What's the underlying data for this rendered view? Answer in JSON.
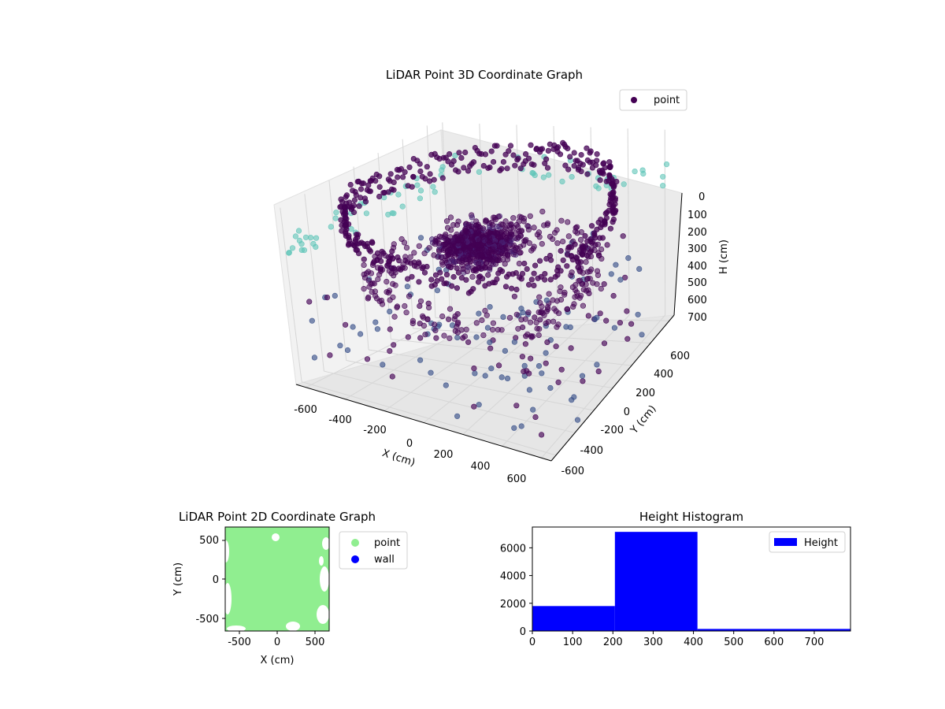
{
  "colors": {
    "point_dark": "#440154",
    "point_mid": "#3b528b",
    "point_teal": "#5ec4b8",
    "point_2d": "#90ee90",
    "wall": "#0000ff",
    "histogram": "#0000ff",
    "axes": "#000000"
  },
  "chart_data": [
    {
      "type": "scatter",
      "projection": "3d",
      "title": "LiDAR Point 3D Coordinate Graph",
      "xlabel": "X (cm)",
      "ylabel": "Y (cm)",
      "zlabel": "H (cm)",
      "xticks": [
        "-600",
        "-400",
        "-200",
        "0",
        "200",
        "400",
        "600"
      ],
      "yticks": [
        "-600",
        "-400",
        "-200",
        "0",
        "200",
        "400",
        "600"
      ],
      "zticks": [
        "0",
        "100",
        "200",
        "300",
        "400",
        "500",
        "600",
        "700"
      ],
      "xlim": [
        -650,
        650
      ],
      "ylim": [
        -650,
        650
      ],
      "zlim": [
        0,
        750
      ],
      "z_axis_inverted": true,
      "legend": {
        "position": "top-right",
        "entries": [
          "point"
        ]
      },
      "grid": true,
      "series": [
        {
          "name": "point",
          "description": "dense ring of points near the ceiling at radius ~600 cm and height ~0–200 cm, with a dense cluster around the center at height 250–400 cm and sparse outliers down to 700 cm"
        }
      ]
    },
    {
      "type": "scatter",
      "title": "LiDAR Point 2D Coordinate Graph",
      "xlabel": "X (cm)",
      "ylabel": "Y (cm)",
      "xticks": [
        "-500",
        "0",
        "500"
      ],
      "yticks": [
        "-500",
        "0",
        "500"
      ],
      "xlim": [
        -650,
        650
      ],
      "ylim": [
        -650,
        650
      ],
      "legend": {
        "position": "outside-right",
        "entries": [
          "point",
          "wall"
        ]
      },
      "series": [
        {
          "name": "point",
          "description": "points fill nearly the whole square area"
        },
        {
          "name": "wall",
          "values": []
        }
      ]
    },
    {
      "type": "bar",
      "subtype": "histogram",
      "title": "Height Histogram",
      "xticks": [
        "0",
        "100",
        "200",
        "300",
        "400",
        "500",
        "600",
        "700"
      ],
      "yticks": [
        "0",
        "2000",
        "4000",
        "6000"
      ],
      "xlim": [
        0,
        790
      ],
      "ylim": [
        0,
        7500
      ],
      "legend": {
        "position": "top-right",
        "entries": [
          "Height"
        ]
      },
      "bins": [
        {
          "start": 0,
          "end": 205,
          "count": 1800
        },
        {
          "start": 205,
          "end": 410,
          "count": 7150
        },
        {
          "start": 410,
          "end": 790,
          "count": 150
        }
      ],
      "series": [
        {
          "name": "Height",
          "values": [
            1800,
            7150,
            150
          ]
        }
      ]
    }
  ]
}
